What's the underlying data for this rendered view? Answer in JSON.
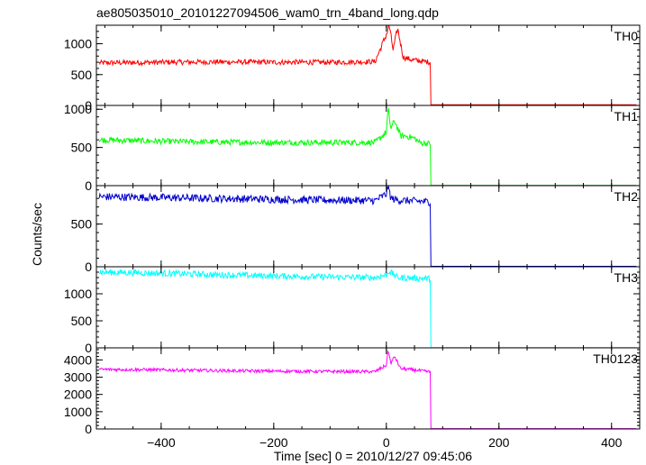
{
  "chart_data": {
    "type": "line",
    "title": "ae805035010_20101227094506_wam0_trn_4band_long.qdp",
    "xlabel": "Time [sec] 0 = 2010/12/27 09:45:06",
    "ylabel": "Counts/sec",
    "xlim": [
      -515,
      450
    ],
    "x_ticks": [
      -400,
      -200,
      0,
      200,
      400
    ],
    "x_tick_labels": [
      "−400",
      "−200",
      "0",
      "200",
      "400"
    ],
    "grid": false,
    "legend": "none",
    "panels": [
      {
        "label": "TH0",
        "color": "#ff0000",
        "ylim": [
          0,
          1300
        ],
        "y_ticks": [
          0,
          500,
          1000
        ],
        "y_tick_labels": [
          "0",
          "500",
          "1000"
        ],
        "series": {
          "x": [
            -510,
            -450,
            -400,
            -300,
            -200,
            -100,
            -20,
            0,
            5,
            12,
            20,
            30,
            45,
            60,
            78,
            79,
            445
          ],
          "y": [
            690,
            695,
            700,
            705,
            700,
            700,
            710,
            1150,
            1300,
            900,
            1250,
            780,
            740,
            720,
            700,
            10,
            10
          ]
        }
      },
      {
        "label": "TH1",
        "color": "#00ff00",
        "ylim": [
          0,
          1050
        ],
        "y_ticks": [
          0,
          500,
          1000
        ],
        "y_tick_labels": [
          "0",
          "500",
          "1000"
        ],
        "series": {
          "x": [
            -510,
            -450,
            -400,
            -300,
            -200,
            -100,
            -20,
            0,
            3,
            8,
            15,
            25,
            35,
            50,
            60,
            78,
            79,
            445
          ],
          "y": [
            600,
            590,
            580,
            570,
            565,
            565,
            565,
            700,
            1000,
            750,
            850,
            650,
            650,
            620,
            560,
            550,
            5,
            5
          ]
        }
      },
      {
        "label": "TH2",
        "color": "#0000cc",
        "ylim": [
          0,
          950
        ],
        "y_ticks": [
          0,
          500
        ],
        "y_tick_labels": [
          "0",
          "500"
        ],
        "series": {
          "x": [
            -510,
            -450,
            -400,
            -300,
            -200,
            -100,
            -20,
            0,
            3,
            8,
            20,
            50,
            78,
            79,
            445
          ],
          "y": [
            820,
            815,
            810,
            800,
            790,
            780,
            775,
            850,
            960,
            800,
            780,
            770,
            760,
            5,
            5
          ]
        }
      },
      {
        "label": "TH3",
        "color": "#00ffff",
        "ylim": [
          0,
          1500
        ],
        "y_ticks": [
          0,
          500,
          1000
        ],
        "y_tick_labels": [
          "0",
          "500",
          "1000"
        ],
        "series": {
          "x": [
            -510,
            -450,
            -400,
            -300,
            -200,
            -100,
            -20,
            0,
            5,
            20,
            50,
            78,
            79,
            445
          ],
          "y": [
            1400,
            1390,
            1380,
            1350,
            1330,
            1310,
            1300,
            1350,
            1420,
            1300,
            1290,
            1280,
            5,
            5
          ]
        }
      },
      {
        "label": "TH0123",
        "color": "#ff00ff",
        "ylim": [
          0,
          4700
        ],
        "y_ticks": [
          0,
          1000,
          2000,
          3000,
          4000
        ],
        "y_tick_labels": [
          "0",
          "1000",
          "2000",
          "3000",
          "4000"
        ],
        "series": {
          "x": [
            -510,
            -450,
            -400,
            -300,
            -200,
            -100,
            -20,
            0,
            3,
            8,
            15,
            25,
            40,
            55,
            78,
            79,
            445
          ],
          "y": [
            3450,
            3440,
            3420,
            3380,
            3350,
            3330,
            3320,
            3700,
            4600,
            3800,
            4200,
            3500,
            3450,
            3400,
            3300,
            20,
            20
          ]
        }
      }
    ]
  }
}
